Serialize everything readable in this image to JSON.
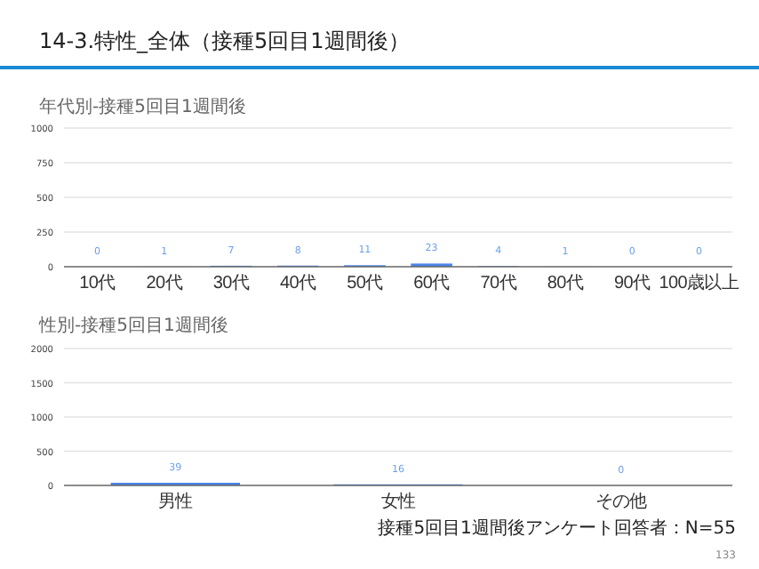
{
  "chart_data": [
    {
      "type": "bar",
      "title": "14-3.特性_全体（接種5回目1週間後）",
      "subtitle": "年代別-接種5回目1週間後",
      "categories": [
        "10代",
        "20代",
        "30代",
        "40代",
        "50代",
        "60代",
        "70代",
        "80代",
        "90代",
        "100歳以上"
      ],
      "values": [
        0,
        1,
        7,
        8,
        11,
        23,
        4,
        1,
        0,
        0
      ],
      "color": "#4a86e8",
      "ylim": [
        0,
        1000
      ],
      "yticks": [
        0,
        250,
        500,
        750,
        1000
      ],
      "grid": "y",
      "data_labels": true
    },
    {
      "type": "bar",
      "title": "性別-接種5回目1週間後",
      "categories": [
        "男性",
        "女性",
        "その他"
      ],
      "values": [
        39,
        16,
        0
      ],
      "color": "#4a86e8",
      "ylim": [
        0,
        2000
      ],
      "yticks": [
        0,
        500,
        1000,
        1500,
        2000
      ],
      "grid": "y",
      "data_labels": true,
      "annotations": [
        "接種5回目1週間後アンケート回答者：N=55",
        "133"
      ]
    }
  ]
}
